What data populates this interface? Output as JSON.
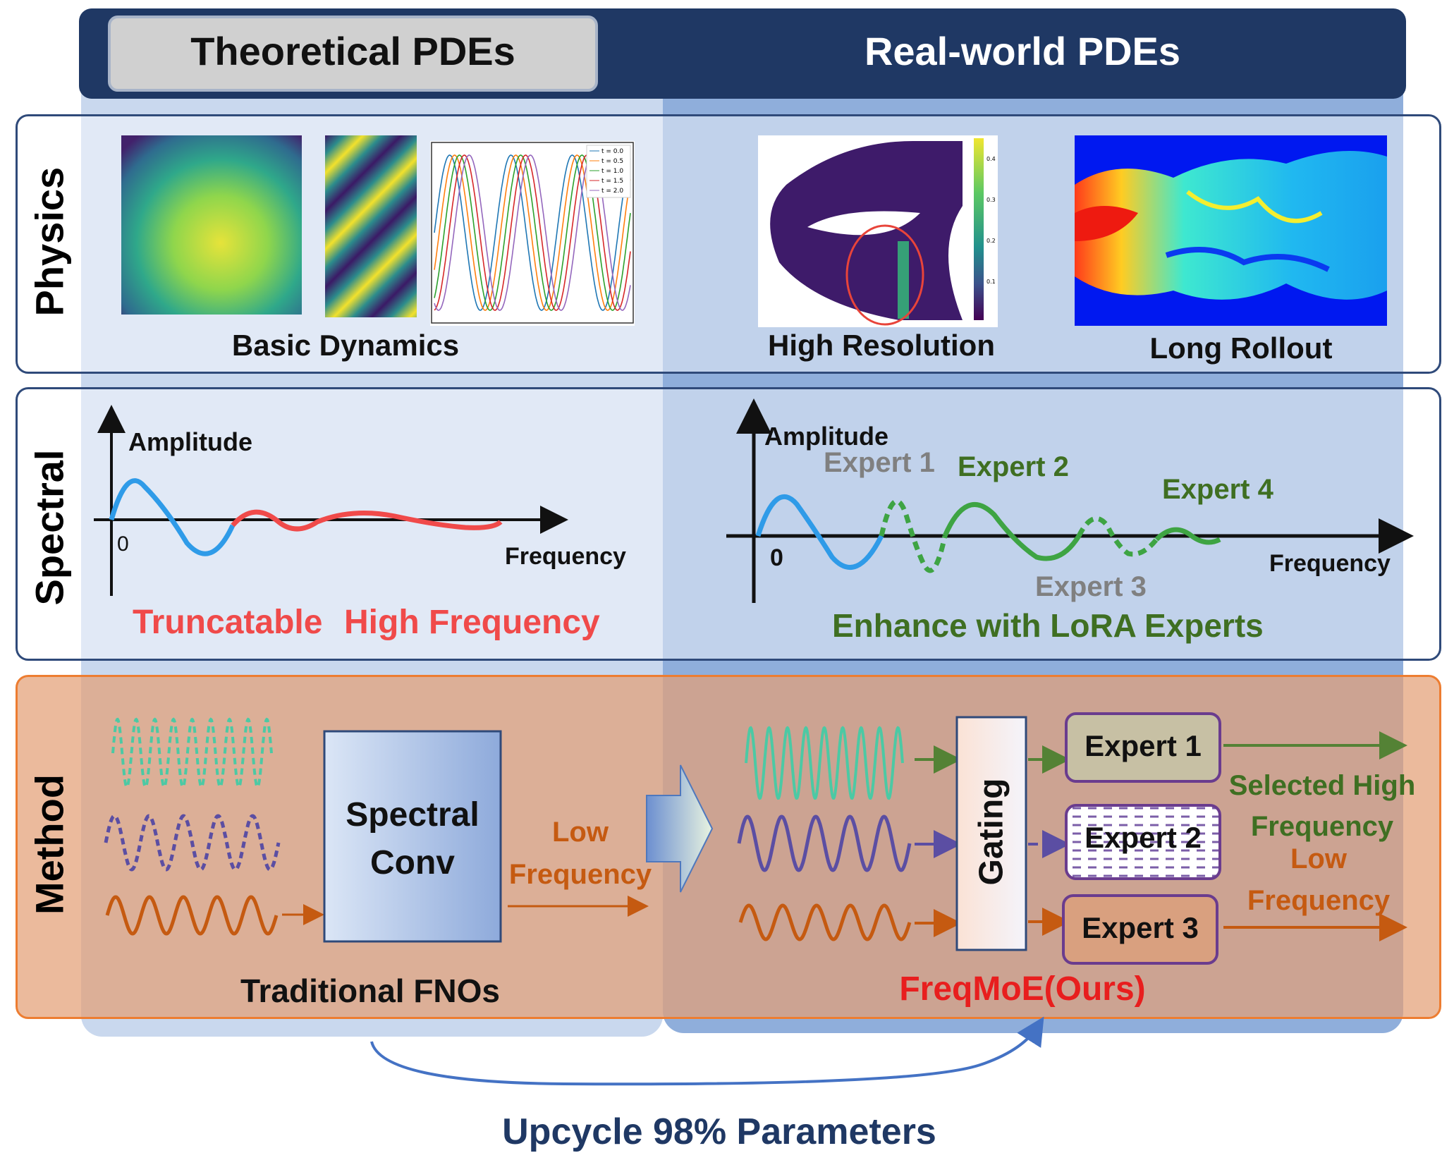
{
  "header": {
    "left_tab": "Theoretical PDEs",
    "right_tab": "Real-world PDEs"
  },
  "rows": {
    "physics": "Physics",
    "spectral": "Spectral",
    "method": "Method"
  },
  "physics": {
    "basic_dynamics": "Basic Dynamics",
    "high_resolution": "High Resolution",
    "long_rollout": "Long Rollout",
    "plot_legend": [
      "t = 0.0",
      "t = 0.5",
      "t = 1.0",
      "t = 1.5",
      "t = 2.0"
    ],
    "colorbar_ticks": [
      "0.4",
      "0.3",
      "0.2",
      "0.1"
    ]
  },
  "spectral": {
    "left": {
      "y_axis": "Amplitude",
      "origin": "0",
      "x_axis": "Frequency",
      "caption_a": "Truncatable",
      "caption_b": "High Frequency"
    },
    "right": {
      "y_axis": "Amplitude",
      "origin": "0",
      "x_axis": "Frequency",
      "expert1": "Expert 1",
      "expert2": "Expert 2",
      "expert3": "Expert 3",
      "expert4": "Expert 4",
      "caption": "Enhance with LoRA Experts"
    }
  },
  "method": {
    "spectral_conv_1": "Spectral",
    "spectral_conv_2": "Conv",
    "low_freq_1": "Low",
    "low_freq_2": "Frequency",
    "traditional": "Traditional FNOs",
    "gating": "Gating",
    "expert1": "Expert 1",
    "expert2": "Expert 2",
    "expert3": "Expert 3",
    "selected_high_1": "Selected High",
    "selected_high_2": "Frequency",
    "low_1": "Low",
    "low_2": "Frequency",
    "ours": "FreqMoE(Ours)"
  },
  "footer": {
    "upcycle": "Upcycle 98% Parameters"
  },
  "colors": {
    "navy": "#1f3864",
    "red": "#f04a4a",
    "green": "#3f6f22",
    "gray": "#808080",
    "orange": "#c55a11",
    "teal": "#4cc9a4",
    "purple": "#5b4ea3",
    "blue": "#2f9be8"
  }
}
